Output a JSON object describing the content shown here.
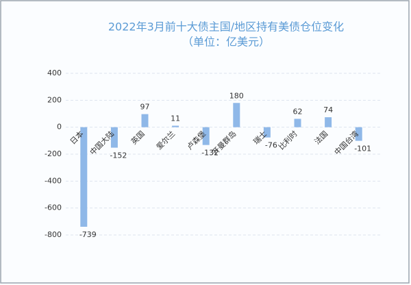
{
  "chart_data": {
    "type": "bar",
    "title": "2022年3月前十大债主国/地区持有美债仓位变化",
    "subtitle": "（单位：亿美元）",
    "categories": [
      "日本",
      "中国大陆",
      "英国",
      "爱尔兰",
      "卢森堡",
      "开曼群岛",
      "瑞士",
      "比利时",
      "法国",
      "中国台湾"
    ],
    "values": [
      -739,
      -152,
      97,
      11,
      -132,
      180,
      -76,
      62,
      74,
      -101
    ],
    "color": "#8fb8e8",
    "ylim": [
      -800,
      400
    ],
    "yticks": [
      -800,
      -600,
      -400,
      -200,
      0,
      200,
      400
    ],
    "grid": true
  }
}
